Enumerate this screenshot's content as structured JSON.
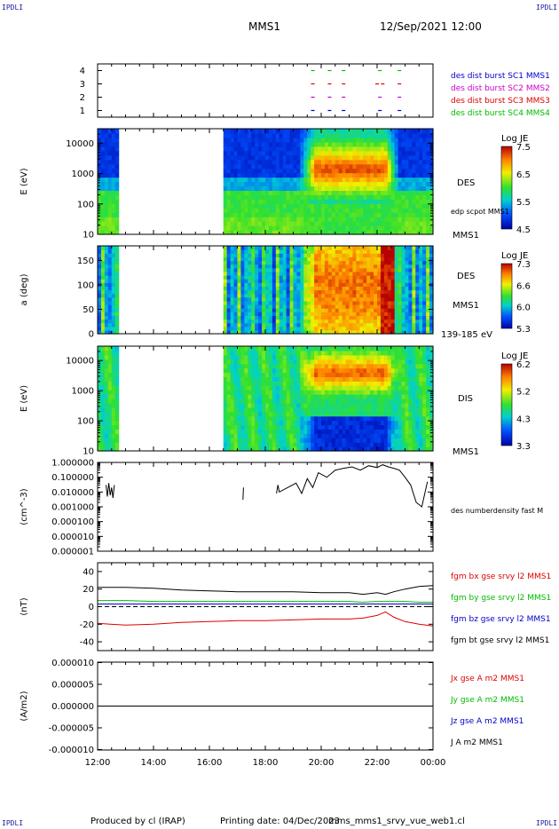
{
  "header": {
    "corner_label": "IPDLI",
    "mission": "MMS1",
    "datetime": "12/Sep/2021 12:00"
  },
  "footer": {
    "produced_by": "Produced by cl (IRAP)",
    "printing_date": "Printing date: 04/Dec/2023",
    "product": "mms_mms1_srvy_vue_web1.cl"
  },
  "colors": {
    "mms1": "#0000cc",
    "mms2": "#cc00cc",
    "mms3": "#dd0000",
    "mms4": "#00bb00",
    "black": "#000000"
  },
  "chart_data": [
    {
      "type": "scatter",
      "id": "burst",
      "ylabel": "",
      "ylim": [
        0.5,
        4.5
      ],
      "yticks": [
        "1",
        "2",
        "3",
        "4"
      ],
      "x_start": "12:00",
      "x_end": "00:00",
      "series": [
        {
          "name": "des dist burst SC1 MMS1",
          "y": 1,
          "color": "#0000cc",
          "x": [
            19.7,
            20.3,
            20.8,
            22.1,
            22.8
          ]
        },
        {
          "name": "des dist burst SC2 MMS2",
          "y": 2,
          "color": "#cc00cc",
          "x": [
            19.7,
            20.3,
            20.8,
            22.1,
            22.8
          ]
        },
        {
          "name": "des dist burst SC3 MMS3",
          "y": 3,
          "color": "#dd0000",
          "x": [
            19.7,
            20.3,
            20.8,
            22.0,
            22.2,
            22.8
          ]
        },
        {
          "name": "des dist burst SC4 MMS4",
          "y": 4,
          "color": "#00bb00",
          "x": [
            19.7,
            20.3,
            20.8,
            22.1,
            22.8
          ]
        }
      ]
    },
    {
      "type": "heatmap",
      "id": "des_energy",
      "ylabel": "E (eV)",
      "yscale": "log",
      "ylim": [
        10,
        30000
      ],
      "yticks": [
        "10",
        "100",
        "1000",
        "10000"
      ],
      "right_labels": [
        "DES",
        "edp scpot MMS1",
        "MMS1"
      ],
      "colorbar": {
        "title": "Log JE",
        "range": [
          4.5,
          7.5
        ],
        "ticks": [
          "7.5",
          "6.5",
          "5.5",
          "4.5"
        ]
      },
      "data_gaps": [
        [
          12.7,
          16.5
        ]
      ]
    },
    {
      "type": "heatmap",
      "id": "des_pitch",
      "ylabel": "a (deg)",
      "ylim": [
        0,
        180
      ],
      "yticks": [
        "0",
        "50",
        "100",
        "150"
      ],
      "right_labels": [
        "DES",
        "MMS1",
        "139-185 eV"
      ],
      "colorbar": {
        "title": "Log JE",
        "range": [
          5.3,
          7.3
        ],
        "ticks": [
          "7.3",
          "6.6",
          "6.0",
          "5.3"
        ]
      },
      "data_gaps": [
        [
          12.7,
          16.5
        ]
      ]
    },
    {
      "type": "heatmap",
      "id": "dis_energy",
      "ylabel": "E (eV)",
      "yscale": "log",
      "ylim": [
        10,
        30000
      ],
      "yticks": [
        "10",
        "100",
        "1000",
        "10000"
      ],
      "right_labels": [
        "DIS",
        "MMS1"
      ],
      "colorbar": {
        "title": "Log JE",
        "range": [
          3.3,
          6.2
        ],
        "ticks": [
          "6.2",
          "5.2",
          "4.3",
          "3.3"
        ]
      },
      "data_gaps": [
        [
          12.7,
          16.5
        ]
      ]
    },
    {
      "type": "line",
      "id": "density",
      "ylabel": "(cm^-3)",
      "yscale": "log",
      "ylim": [
        1e-06,
        1.0
      ],
      "yticks": [
        "1.000000",
        "0.100000",
        "0.010000",
        "0.001000",
        "0.000100",
        "0.000010",
        "0.000001"
      ],
      "right_labels": [
        "des numberdensity fast M"
      ],
      "series": [
        {
          "name": "des numberdensity fast M",
          "color": "#000000",
          "x": [
            12.3,
            12.35,
            12.4,
            12.45,
            12.5,
            12.55,
            12.6,
            17.2,
            17.22,
            18.4,
            18.45,
            18.5,
            19.1,
            19.3,
            19.5,
            19.7,
            19.9,
            20.2,
            20.5,
            20.8,
            21.1,
            21.4,
            21.7,
            22.0,
            22.2,
            22.4,
            22.6,
            22.8,
            23.0,
            23.2,
            23.4,
            23.6,
            23.8
          ],
          "y": [
            0.03,
            0.005,
            0.04,
            0.006,
            0.02,
            0.004,
            0.03,
            0.003,
            0.02,
            0.008,
            0.03,
            0.01,
            0.04,
            0.008,
            0.08,
            0.02,
            0.2,
            0.1,
            0.3,
            0.4,
            0.5,
            0.3,
            0.6,
            0.45,
            0.7,
            0.5,
            0.4,
            0.3,
            0.1,
            0.03,
            0.002,
            0.001,
            0.05
          ]
        }
      ]
    },
    {
      "type": "line",
      "id": "magnetic",
      "ylabel": "(nT)",
      "ylim": [
        -50,
        50
      ],
      "yticks": [
        "40",
        "20",
        "0",
        "-20",
        "-40"
      ],
      "x": [
        12.0,
        13.0,
        14.0,
        15.0,
        16.0,
        17.0,
        18.0,
        19.0,
        20.0,
        21.0,
        21.5,
        22.0,
        22.3,
        22.6,
        23.0,
        23.5,
        24.0
      ],
      "series": [
        {
          "name": "fgm bx gse srvy l2 MMS1",
          "color": "#dd0000",
          "values": [
            -19,
            -21,
            -20,
            -18,
            -17,
            -16,
            -16,
            -15,
            -14,
            -14,
            -13,
            -10,
            -6,
            -12,
            -17,
            -20,
            -22
          ]
        },
        {
          "name": "fgm by gse srvy l2 MMS1",
          "color": "#00bb00",
          "values": [
            7,
            7,
            6,
            6,
            6,
            6,
            6,
            6,
            6,
            6,
            5,
            6,
            6,
            6,
            6,
            5,
            5
          ]
        },
        {
          "name": "fgm bz gse srvy l2 MMS1",
          "color": "#0000cc",
          "values": [
            3,
            3,
            3,
            3,
            3,
            3,
            3,
            3,
            3,
            3,
            3,
            3,
            3,
            3,
            3,
            3,
            3
          ]
        },
        {
          "name": "fgm bt gse srvy l2 MMS1",
          "color": "#000000",
          "values": [
            22,
            22,
            21,
            19,
            18,
            17,
            17,
            17,
            16,
            16,
            14,
            16,
            14,
            17,
            20,
            23,
            24
          ]
        }
      ]
    },
    {
      "type": "line",
      "id": "current",
      "ylabel": "(A/m2)",
      "ylim": [
        -1.01e-05,
        1.01e-05
      ],
      "yticks": [
        "0.000010",
        "0.000005",
        "0.000000",
        "-0.000005",
        "-0.000010"
      ],
      "xticks": [
        "12:00",
        "14:00",
        "16:00",
        "18:00",
        "20:00",
        "22:00",
        "00:00"
      ],
      "x": [
        12.0,
        16.5,
        19.0,
        21.0,
        22.5,
        24.0
      ],
      "series": [
        {
          "name": "Jx gse A m2 MMS1",
          "color": "#dd0000",
          "values": [
            0,
            0,
            0,
            0,
            0,
            0
          ]
        },
        {
          "name": "Jy gse A m2 MMS1",
          "color": "#00bb00",
          "values": [
            0,
            0,
            0,
            0,
            0,
            0
          ]
        },
        {
          "name": "Jz gse A m2 MMS1",
          "color": "#0000cc",
          "values": [
            0,
            0,
            0,
            0,
            0,
            0
          ]
        },
        {
          "name": "J A m2 MMS1",
          "color": "#000000",
          "values": [
            0,
            0,
            0,
            0,
            0,
            0
          ]
        }
      ]
    }
  ]
}
